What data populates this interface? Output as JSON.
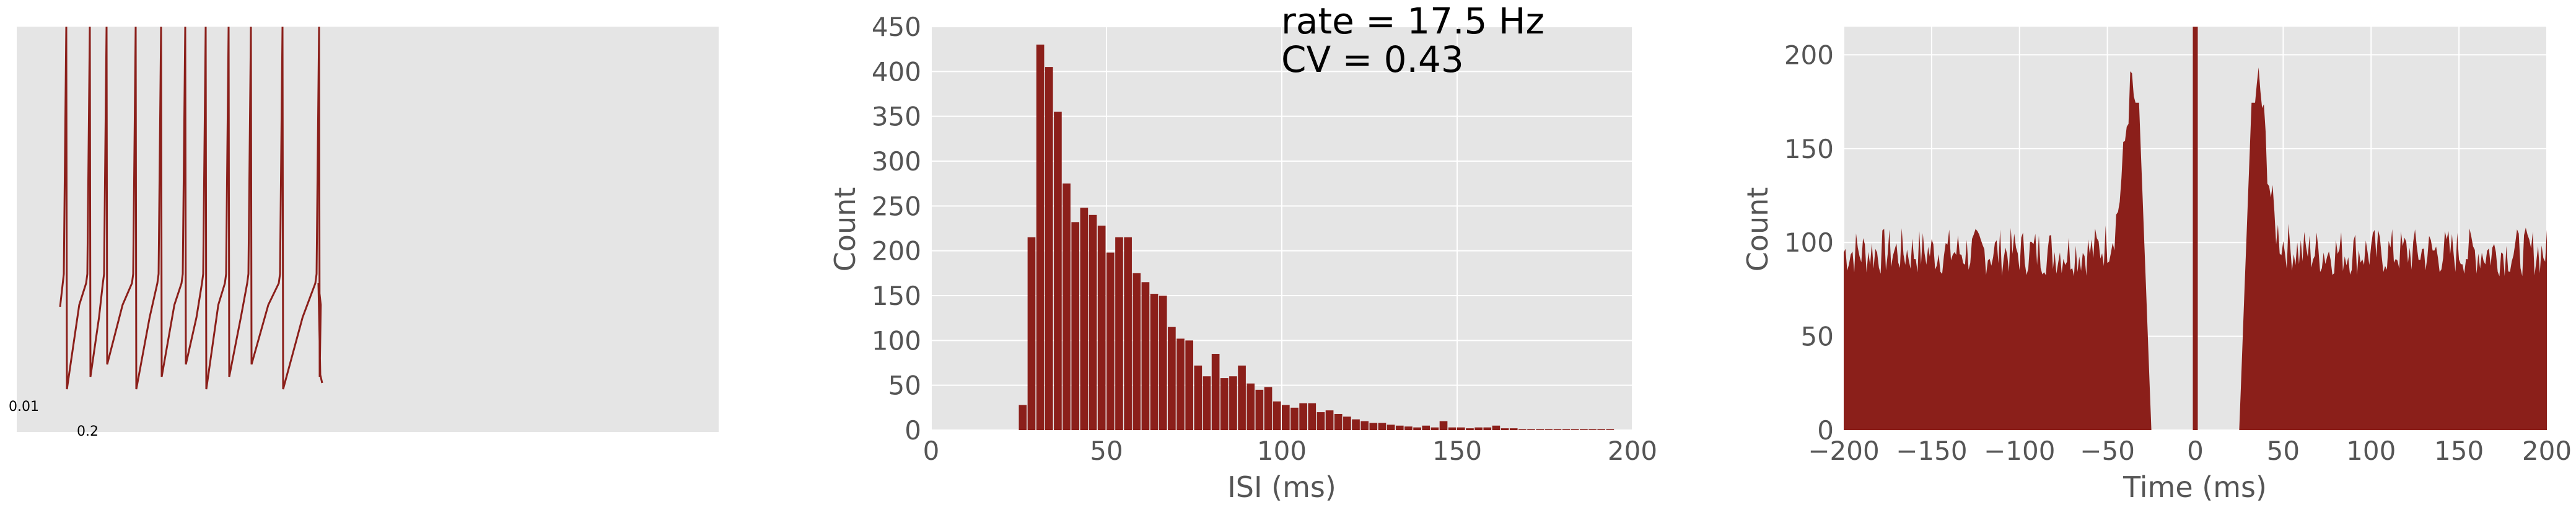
{
  "colors": {
    "plot_bg": "#e5e5e5",
    "grid": "#ffffff",
    "mark": "#8b1f1a",
    "tick_text": "#555555",
    "label_text": "#555555",
    "annotation_text": "#000000"
  },
  "chart_data": [
    {
      "type": "line",
      "panel": "voltage-trace",
      "description_hidden": true,
      "scalebar": {
        "vertical_label": "0.01",
        "horizontal_label": "0.2"
      },
      "spike_count": 9,
      "grid": false
    },
    {
      "type": "bar",
      "panel": "isi-histogram",
      "xlabel": "ISI (ms)",
      "ylabel": "Count",
      "xlim": [
        0,
        200
      ],
      "ylim": [
        0,
        450
      ],
      "xticks": [
        "0",
        "50",
        "100",
        "150",
        "200"
      ],
      "yticks": [
        "0",
        "50",
        "100",
        "150",
        "200",
        "250",
        "300",
        "350",
        "400",
        "450"
      ],
      "bin_width": 2.5,
      "bin_start": 25,
      "values": [
        28,
        215,
        430,
        405,
        355,
        275,
        232,
        248,
        240,
        228,
        198,
        215,
        215,
        175,
        165,
        152,
        150,
        115,
        102,
        100,
        72,
        60,
        85,
        58,
        60,
        72,
        52,
        45,
        48,
        32,
        28,
        25,
        30,
        30,
        20,
        22,
        18,
        15,
        12,
        10,
        8,
        8,
        6,
        5,
        4,
        3,
        5,
        3,
        10,
        3,
        3,
        2,
        3,
        3,
        5,
        2,
        2,
        1,
        1,
        1,
        1,
        1,
        1,
        1,
        1,
        1,
        1,
        1
      ],
      "annotations": [
        "rate = 17.5 Hz",
        "CV = 0.43"
      ],
      "grid": true
    },
    {
      "type": "area",
      "panel": "autocorrelogram",
      "xlabel": "Time (ms)",
      "ylabel": "Count",
      "xlim": [
        -200,
        200
      ],
      "ylim": [
        0,
        215
      ],
      "xticks": [
        "−200",
        "−150",
        "−100",
        "−50",
        "0",
        "50",
        "100",
        "150",
        "200"
      ],
      "yticks": [
        "0",
        "50",
        "100",
        "150",
        "200"
      ],
      "baseline": 95,
      "peaks": [
        {
          "t": -35,
          "value": 178
        },
        {
          "t": 35,
          "value": 178
        }
      ],
      "refractory_edge": 25,
      "center_line": {
        "t": 0,
        "value": 215
      },
      "grid": true
    }
  ]
}
